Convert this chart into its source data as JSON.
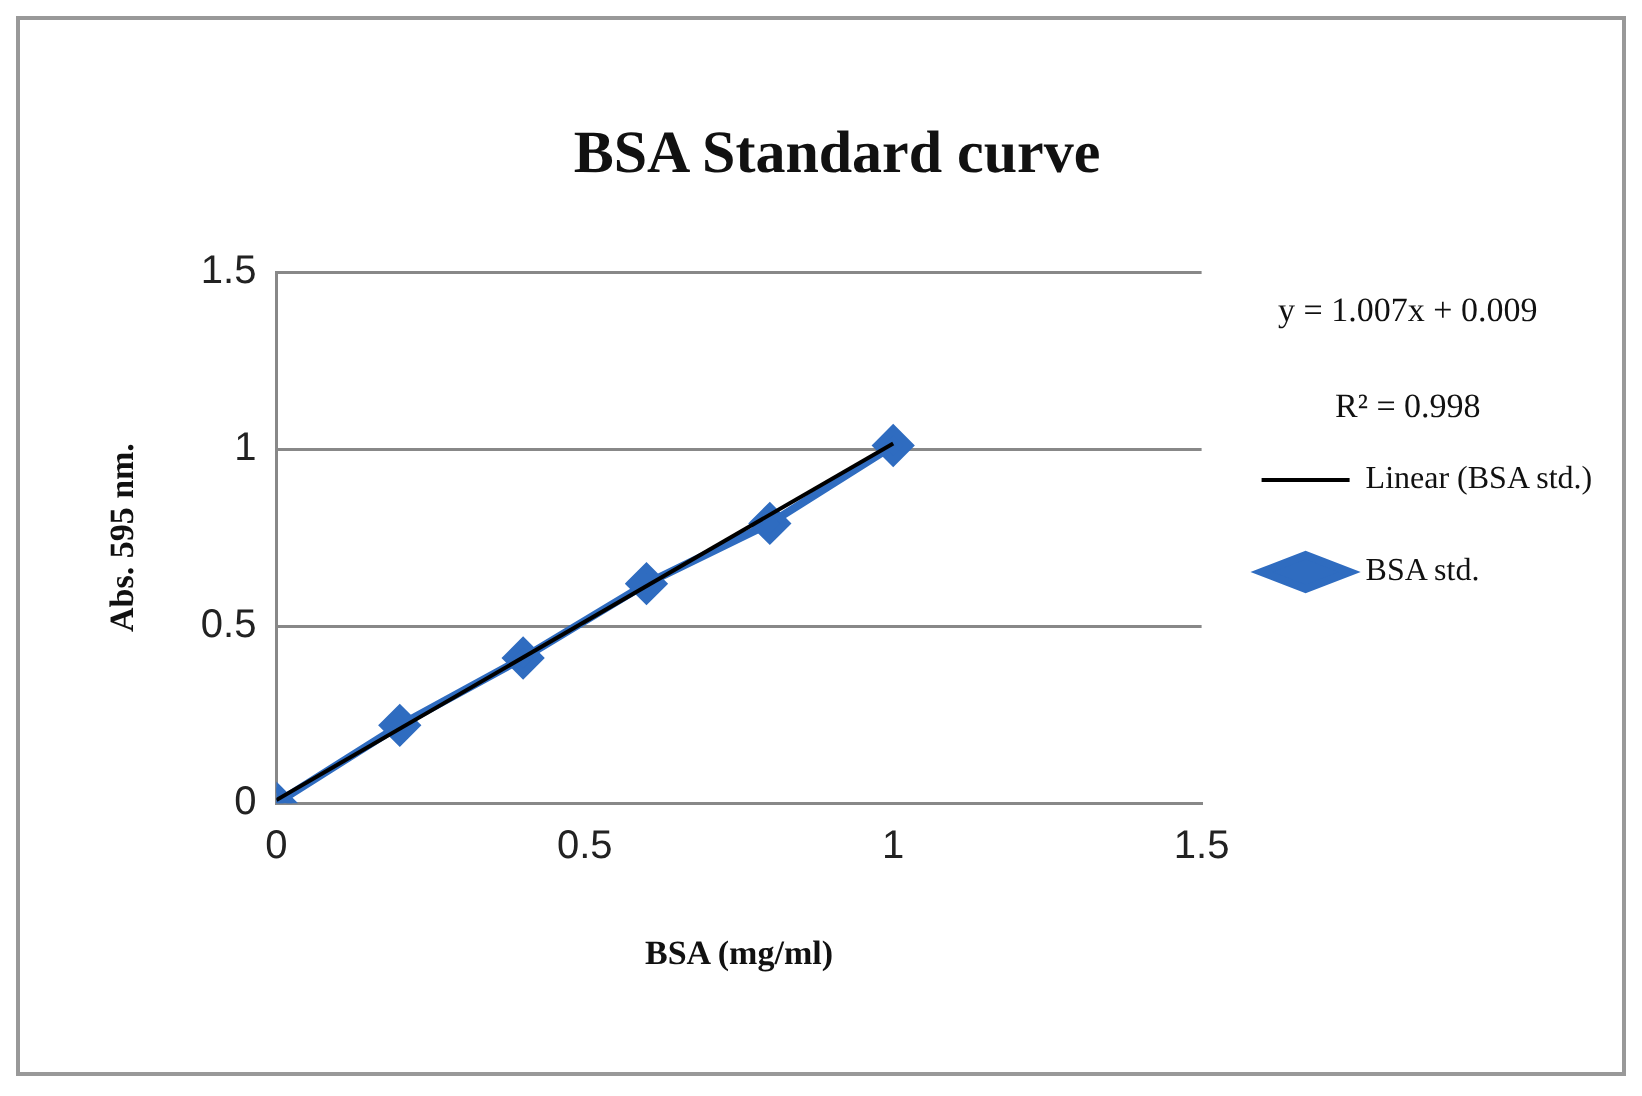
{
  "chart_data": {
    "type": "line",
    "title": "BSA Standard curve",
    "xlabel": "BSA (mg/ml)",
    "ylabel": "Abs. 595 nm.",
    "annotations": [
      "y = 1.007x + 0.009",
      "R² = 0.998"
    ],
    "x": [
      0,
      0.2,
      0.4,
      0.6,
      0.8,
      1
    ],
    "series": [
      {
        "name": "BSA std.",
        "color": "#2f6cc0",
        "values": [
          0,
          0.22,
          0.41,
          0.62,
          0.79,
          1.01
        ],
        "marker": "diamond"
      },
      {
        "name": "Linear (BSA std.)",
        "type": "line",
        "color": "#000000",
        "x": [
          0,
          1
        ],
        "values": [
          0.009,
          1.016
        ],
        "marker": "none"
      }
    ],
    "xlim": [
      0,
      1.5
    ],
    "xticks": [
      0,
      0.5,
      1,
      1.5
    ],
    "ylim": [
      0,
      1.5
    ],
    "yticks": [
      0,
      0.5,
      1,
      1.5
    ],
    "grid": "y",
    "legend": "right"
  }
}
